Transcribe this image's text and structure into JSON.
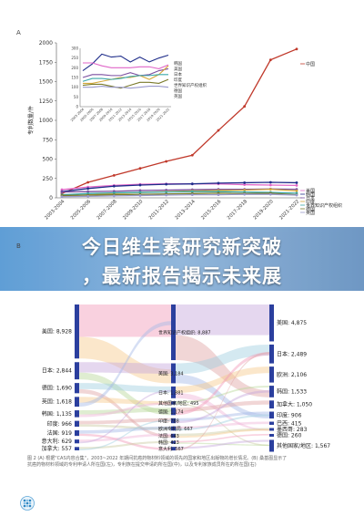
{
  "panel_labels": {
    "a": "A",
    "b": "B"
  },
  "banner": {
    "line1": "今日维生素研究新突破",
    "line2": "，最新报告揭示未来展"
  },
  "caption": {
    "line1": "图 2 (A) 根据\"CAS内容合集\"，2003~2022 年期间抗癌药物材料领域的领先的国家和地区出版物的增长情况。(B) 桑基图显示了",
    "line2": "抗癌药物材料领域的专利申请人所在国(左)，专利族在提交申请的所在国(中)，以及专利家族成员所在的所在国(右)"
  },
  "colors": {
    "china": "#c0392b",
    "korea": "#1f2d8a",
    "usa": "#e066c8",
    "japan": "#7b4fa0",
    "india": "#d4a83a",
    "world": "#3aa8a8",
    "germany": "#7a7a2a",
    "uk": "#9999cc",
    "banner": "#6fa3d6"
  },
  "chart_data": [
    {
      "type": "line",
      "ylabel": "专利数量/件",
      "x": [
        "2003-2004",
        "2005-2006",
        "2007-2008",
        "2009-2010",
        "2011-2012",
        "2013-2014",
        "2015-2016",
        "2017-2018",
        "2019-2020",
        "2021-2022"
      ],
      "ylim": [
        0,
        2000
      ],
      "yticks": [
        0,
        250,
        500,
        750,
        1000,
        1250,
        1500,
        1750,
        2000
      ],
      "series": [
        {
          "name": "中国",
          "color": "#c0392b",
          "values": [
            55,
            200,
            290,
            380,
            470,
            550,
            870,
            1180,
            1780,
            1920
          ]
        },
        {
          "name": "美国",
          "color": "#e066c8",
          "values": [
            105,
            140,
            160,
            175,
            180,
            180,
            180,
            170,
            165,
            160
          ]
        },
        {
          "name": "韩国",
          "color": "#1f2d8a",
          "values": [
            80,
            120,
            150,
            165,
            175,
            180,
            190,
            195,
            200,
            195
          ]
        },
        {
          "name": "日本",
          "color": "#7b4fa0",
          "values": [
            75,
            80,
            85,
            95,
            100,
            105,
            110,
            110,
            115,
            110
          ]
        },
        {
          "name": "印度",
          "color": "#d4a83a",
          "values": [
            20,
            40,
            55,
            70,
            80,
            90,
            95,
            100,
            110,
            90
          ]
        },
        {
          "name": "世界知识产权组织",
          "color": "#3aa8a8",
          "values": [
            40,
            55,
            65,
            70,
            75,
            80,
            80,
            75,
            70,
            60
          ]
        },
        {
          "name": "德国",
          "color": "#7a7a2a",
          "values": [
            30,
            35,
            40,
            45,
            50,
            55,
            60,
            55,
            60,
            40
          ]
        },
        {
          "name": "英国",
          "color": "#9999cc",
          "values": [
            15,
            20,
            25,
            30,
            35,
            40,
            40,
            45,
            45,
            35
          ]
        }
      ],
      "legend_right": [
        "中国",
        "美国",
        "韩国",
        "日本",
        "印度",
        "世界知识产权组织",
        "德国",
        "英国"
      ],
      "inset": {
        "ylim": [
          0,
          300
        ],
        "yticks": [
          0,
          50,
          100,
          150,
          200,
          250,
          300
        ],
        "x": [
          "2003-2004",
          "2005-2006",
          "2007-2008",
          "2009-2010",
          "2011-2012",
          "2013-2014",
          "2015-2016",
          "2017-2018",
          "2019-2020",
          "2021-2022"
        ],
        "legend": [
          "韩国",
          "美国",
          "日本",
          "印度",
          "世界知识产权组织",
          "德国",
          "英国"
        ],
        "series": [
          {
            "name": "韩国",
            "color": "#1f2d8a",
            "values": [
              185,
              220,
              270,
              255,
              260,
              230,
              255,
              230,
              250,
              265
            ]
          },
          {
            "name": "美国",
            "color": "#e066c8",
            "values": [
              225,
              225,
              210,
              200,
              200,
              200,
              205,
              205,
              195,
              215
            ]
          },
          {
            "name": "日本",
            "color": "#7b4fa0",
            "values": [
              150,
              165,
              165,
              160,
              160,
              175,
              160,
              165,
              185,
              195
            ]
          },
          {
            "name": "印度",
            "color": "#d4a83a",
            "values": [
              120,
              120,
              130,
              140,
              150,
              150,
              160,
              140,
              165,
              210
            ]
          },
          {
            "name": "世界知识产权组织",
            "color": "#3aa8a8",
            "values": [
              130,
              145,
              145,
              140,
              145,
              155,
              160,
              160,
              165,
              165
            ]
          },
          {
            "name": "德国",
            "color": "#7a7a2a",
            "values": [
              110,
              115,
              115,
              105,
              95,
              110,
              125,
              125,
              120,
              140
            ]
          },
          {
            "name": "英国",
            "color": "#9999cc",
            "values": [
              100,
              100,
              105,
              100,
              100,
              95,
              100,
              105,
              105,
              100
            ]
          }
        ]
      }
    },
    {
      "type": "sankey",
      "left_nodes": [
        {
          "label": "美国",
          "value": "8,928"
        },
        {
          "label": "日本",
          "value": "2,844"
        },
        {
          "label": "德国",
          "value": "1,690"
        },
        {
          "label": "英国",
          "value": "1,618"
        },
        {
          "label": "韩国",
          "value": "1,135"
        },
        {
          "label": "印度",
          "value": "966"
        },
        {
          "label": "法国",
          "value": "919"
        },
        {
          "label": "意大利",
          "value": "629"
        },
        {
          "label": "加拿大",
          "value": "557"
        }
      ],
      "middle_nodes": [
        {
          "label": "世界知识产权组织",
          "value": "8,887"
        },
        {
          "label": "美国",
          "value": "3,184"
        },
        {
          "label": "日本",
          "value": "1,881"
        },
        {
          "label": "其他国家/地区",
          "value": "495"
        },
        {
          "label": "德国",
          "value": "1,174"
        },
        {
          "label": "印度",
          "value": "788"
        },
        {
          "label": "欧洲专利局",
          "value": "667"
        },
        {
          "label": "法国",
          "value": "643"
        },
        {
          "label": "韩国",
          "value": "423"
        },
        {
          "label": "意大利",
          "value": "567"
        }
      ],
      "right_nodes": [
        {
          "label": "美国",
          "value": "4,875"
        },
        {
          "label": "日本",
          "value": "2,489"
        },
        {
          "label": "欧洲",
          "value": "2,106"
        },
        {
          "label": "韩国",
          "value": "1,533"
        },
        {
          "label": "加拿大",
          "value": "1,050"
        },
        {
          "label": "印度",
          "value": "906"
        },
        {
          "label": "巴西",
          "value": "415"
        },
        {
          "label": "墨西哥",
          "value": "283"
        },
        {
          "label": "德国",
          "value": "260"
        },
        {
          "label": "其他国家/地区",
          "value": "1,567"
        }
      ]
    }
  ]
}
